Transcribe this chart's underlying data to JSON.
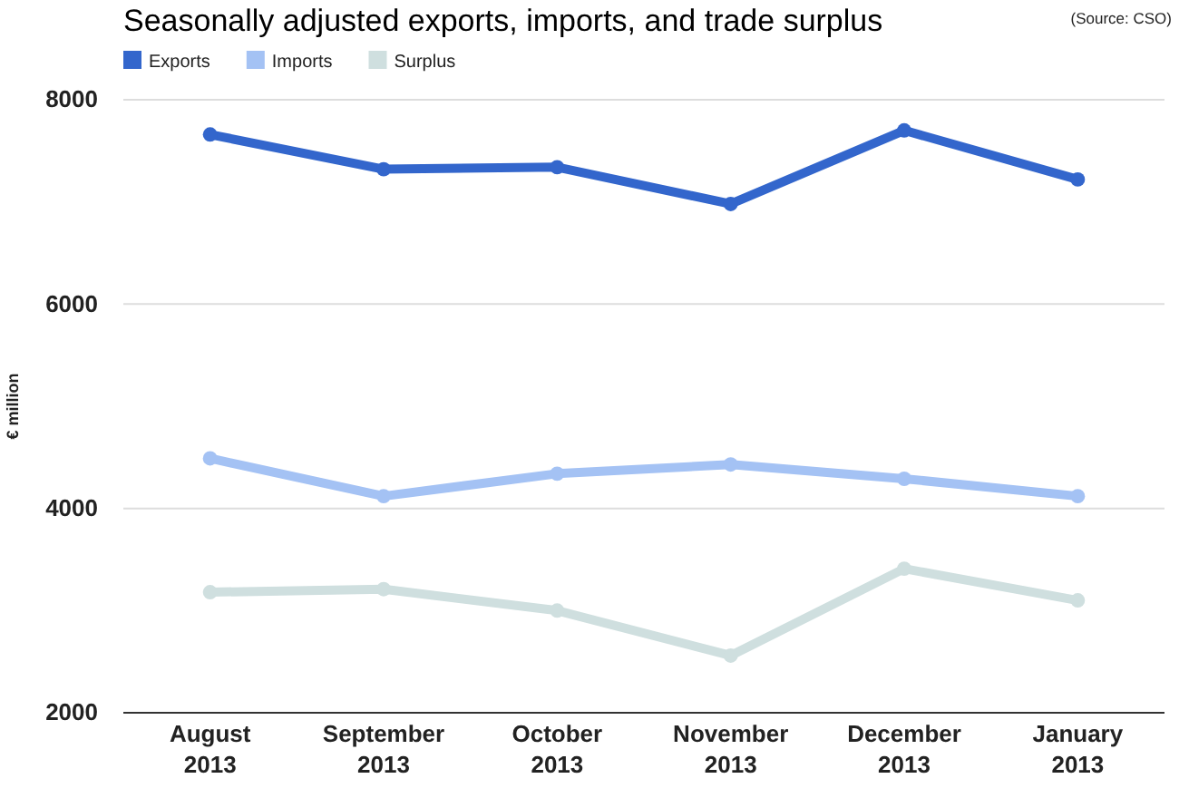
{
  "chart_data": {
    "type": "line",
    "title": "Seasonally adjusted exports, imports, and trade surplus",
    "annotations": [
      "(Source: CSO)"
    ],
    "ylabel": "€ million",
    "categories": [
      "August 2013",
      "September 2013",
      "October 2013",
      "November 2013",
      "December 2013",
      "January 2013"
    ],
    "series": [
      {
        "name": "Exports",
        "color": "#3366cc",
        "values": [
          7660,
          7320,
          7340,
          6980,
          7700,
          7220
        ]
      },
      {
        "name": "Imports",
        "color": "#a4c2f4",
        "values": [
          4490,
          4120,
          4340,
          4430,
          4290,
          4120
        ]
      },
      {
        "name": "Surplus",
        "color": "#cfdfdf",
        "values": [
          3180,
          3210,
          3000,
          2560,
          3410,
          3100
        ]
      }
    ],
    "ylim": [
      2000,
      8000
    ],
    "yticks": [
      2000,
      4000,
      6000,
      8000
    ],
    "grid": "y",
    "legend": "top left",
    "marker": "circle",
    "line_style": "solid"
  }
}
